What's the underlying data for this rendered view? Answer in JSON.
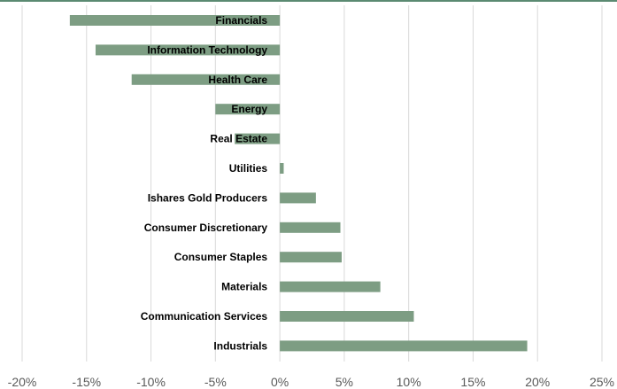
{
  "chart_data": {
    "type": "bar",
    "orientation": "horizontal",
    "categories": [
      "Financials",
      "Information Technology",
      "Health Care",
      "Energy",
      "Real Estate",
      "Utilities",
      "Ishares Gold Producers",
      "Consumer Discretionary",
      "Consumer Staples",
      "Materials",
      "Communication Services",
      "Industrials"
    ],
    "values": [
      -16.3,
      -14.3,
      -11.5,
      -5.0,
      -3.5,
      0.3,
      2.8,
      4.7,
      4.8,
      7.8,
      10.4,
      19.2
    ],
    "value_unit": "%",
    "xlim": [
      -20,
      25
    ],
    "x_ticks": [
      -20,
      -15,
      -10,
      -5,
      0,
      5,
      10,
      15,
      20,
      25
    ],
    "x_tick_labels": [
      "-20%",
      "-15%",
      "-10%",
      "-5%",
      "0%",
      "5%",
      "10%",
      "15%",
      "20%",
      "25%"
    ],
    "grid": "vertical",
    "legend": "none",
    "title": "",
    "xlabel": "",
    "ylabel": "",
    "colors": {
      "bar": "#7d9d83",
      "grid": "#d9d9d9",
      "axis_text": "#595959",
      "label_text": "#000000",
      "top_border": "#5b8a72"
    }
  }
}
